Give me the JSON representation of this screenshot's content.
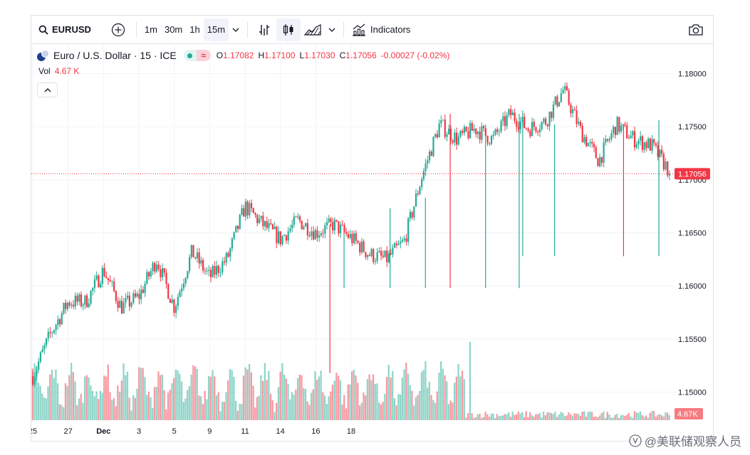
{
  "toolbar": {
    "symbol": "EURUSD",
    "intervals": [
      "1m",
      "30m",
      "1h",
      "15m"
    ],
    "active_interval": "15m",
    "indicators_label": "Indicators"
  },
  "legend": {
    "name": "Euro / U.S. Dollar · 15 · ICE",
    "open_label": "O",
    "open": "1.17082",
    "high_label": "H",
    "high": "1.17100",
    "low_label": "L",
    "low": "1.17030",
    "close_label": "C",
    "close": "1.17056",
    "change": "-0.00027 (-0.02%)",
    "volume_label": "Vol",
    "volume": "4.67 K"
  },
  "colors": {
    "up": "#22ab94",
    "down": "#f23645",
    "price_line": "#f23645"
  },
  "watermark": "@美联储观察人员",
  "chart_data": {
    "type": "candlestick",
    "price_axis": {
      "ticks": [
        1.15,
        1.155,
        1.16,
        1.165,
        1.17,
        1.175,
        1.18
      ],
      "tick_labels": [
        "1.15000",
        "1.15500",
        "1.16000",
        "1.16500",
        "1.17000",
        "1.17500",
        "1.18000"
      ],
      "range": [
        1.1473,
        1.1827
      ]
    },
    "time_axis": {
      "labels": [
        "25",
        "27",
        "Dec",
        "3",
        "5",
        "9",
        "11",
        "14",
        "16",
        "18"
      ],
      "label_index": [
        0,
        2,
        4,
        6,
        8,
        10,
        12,
        14,
        16,
        18
      ]
    },
    "last_price": 1.17056,
    "last_price_label": "1.17056",
    "last_volume_label": "4.67K",
    "price_path_per_half_day": [
      1.1515,
      1.1555,
      1.1585,
      1.1585,
      1.1615,
      1.158,
      1.159,
      1.1625,
      1.158,
      1.1632,
      1.1608,
      1.1626,
      1.1675,
      1.1658,
      1.1644,
      1.1662,
      1.165,
      1.1658,
      1.1645,
      1.163,
      1.1625,
      1.1642,
      1.1703,
      1.1752,
      1.1738,
      1.1748,
      1.1738,
      1.1762,
      1.1748,
      1.1755,
      1.1785,
      1.1745,
      1.1718,
      1.1752,
      1.1738,
      1.1732,
      1.1708
    ],
    "wick_spikes": [
      {
        "t": 16.8,
        "high": 1.1658,
        "low": 1.1518,
        "color": "down"
      },
      {
        "t": 17.6,
        "high": 1.1655,
        "low": 1.1598,
        "color": "up"
      },
      {
        "t": 20.2,
        "high": 1.1673,
        "low": 1.1598,
        "color": "up"
      },
      {
        "t": 22.2,
        "high": 1.1683,
        "low": 1.1598,
        "color": "up"
      },
      {
        "t": 23.6,
        "high": 1.1762,
        "low": 1.1598,
        "color": "down"
      },
      {
        "t": 25.6,
        "high": 1.1752,
        "low": 1.1598,
        "color": "up"
      },
      {
        "t": 27.5,
        "high": 1.1762,
        "low": 1.1598,
        "color": "up"
      },
      {
        "t": 27.7,
        "high": 1.1765,
        "low": 1.1628,
        "color": "up"
      },
      {
        "t": 29.5,
        "high": 1.1752,
        "low": 1.1628,
        "color": "up"
      },
      {
        "t": 33.4,
        "high": 1.1752,
        "low": 1.1628,
        "color": "down"
      },
      {
        "t": 35.4,
        "high": 1.1756,
        "low": 1.1628,
        "color": "up"
      }
    ]
  }
}
